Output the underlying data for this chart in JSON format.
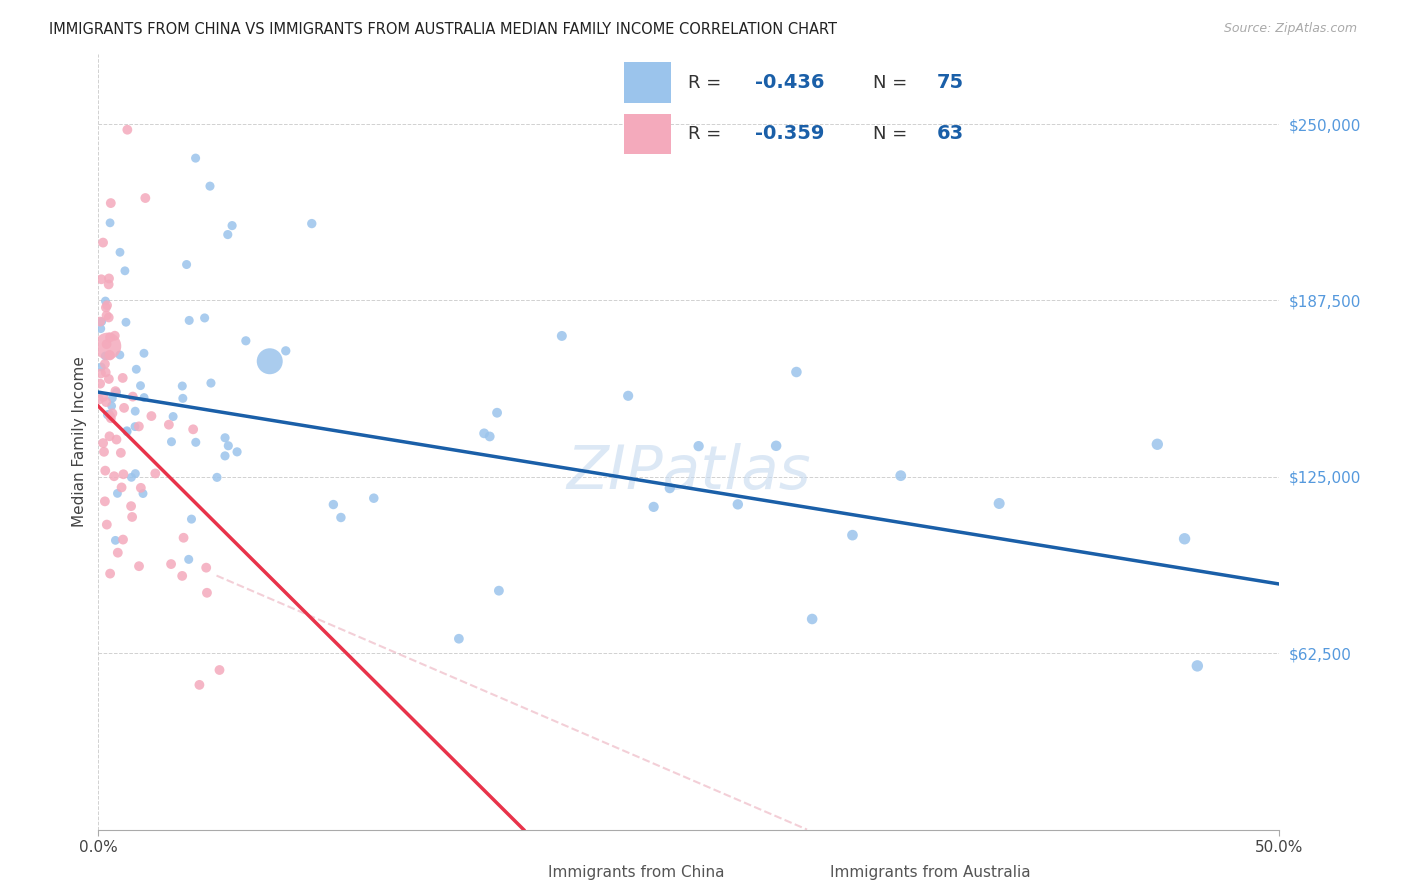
{
  "title": "IMMIGRANTS FROM CHINA VS IMMIGRANTS FROM AUSTRALIA MEDIAN FAMILY INCOME CORRELATION CHART",
  "source": "Source: ZipAtlas.com",
  "ylabel": "Median Family Income",
  "x_min": 0.0,
  "x_max": 0.5,
  "y_min": 0,
  "y_max": 275000,
  "y_ticks": [
    62500,
    125000,
    187500,
    250000
  ],
  "y_tick_labels": [
    "$62,500",
    "$125,000",
    "$187,500",
    "$250,000"
  ],
  "china_color": "#9BC4EC",
  "australia_color": "#F4AABC",
  "china_line_color": "#1A5FA8",
  "australia_line_color": "#E8334A",
  "watermark": "ZIPatlas",
  "legend_china_label": "Immigrants from China",
  "legend_australia_label": "Immigrants from Australia",
  "china_R_str": "-0.436",
  "china_N_str": "75",
  "australia_R_str": "-0.359",
  "australia_N_str": "63",
  "legend_text_color": "#333333",
  "legend_val_color": "#1A5FA8",
  "ytick_color": "#5599DD"
}
